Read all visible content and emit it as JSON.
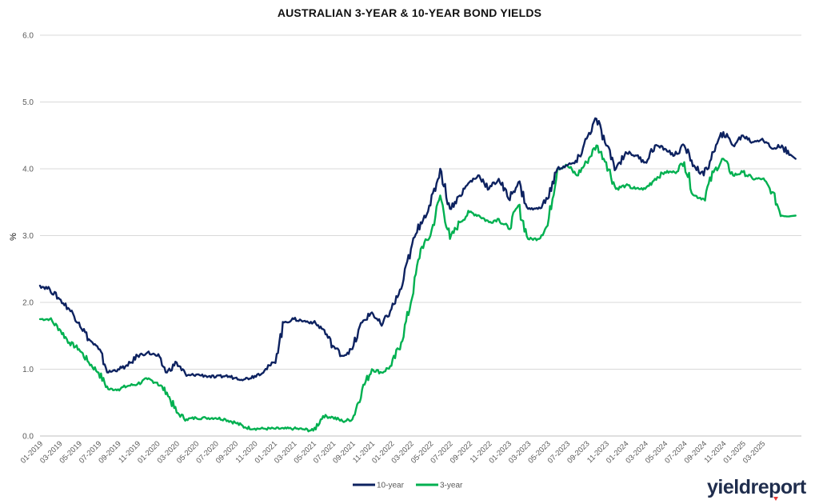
{
  "chart_data": {
    "type": "line",
    "title": "AUSTRALIAN 3-YEAR & 10-YEAR BOND YIELDS",
    "ylabel": "%",
    "xlabel": "",
    "ylim": [
      0,
      6
    ],
    "y_ticks": [
      "0.0",
      "1.0",
      "2.0",
      "3.0",
      "4.0",
      "5.0",
      "6.0"
    ],
    "x_range": [
      "01-2019",
      "07-2025"
    ],
    "x_ticks": [
      "01-2019",
      "03-2019",
      "05-2019",
      "07-2019",
      "09-2019",
      "11-2019",
      "01-2020",
      "03-2020",
      "05-2020",
      "07-2020",
      "09-2020",
      "11-2020",
      "01-2021",
      "03-2021",
      "05-2021",
      "07-2021",
      "09-2021",
      "11-2021",
      "01-2022",
      "03-2022",
      "05-2022",
      "07-2022",
      "09-2022",
      "11-2022",
      "01-2023",
      "03-2023",
      "05-2023",
      "07-2023",
      "09-2023",
      "11-2023",
      "01-2024",
      "03-2024",
      "05-2024",
      "07-2024",
      "09-2024",
      "11-2024",
      "01-2025",
      "03-2025"
    ],
    "grid": "horizontal",
    "legend_position": "bottom",
    "colors": {
      "10-year": "#0d2260",
      "3-year": "#00b050",
      "grid": "#d9d9d9",
      "axis": "#bfbfbf"
    },
    "series": [
      {
        "name": "10-year",
        "x": [
          "2019-01",
          "2019-02",
          "2019-03",
          "2019-04",
          "2019-05",
          "2019-06",
          "2019-07",
          "2019-08",
          "2019-09",
          "2019-10",
          "2019-11",
          "2019-12",
          "2020-01",
          "2020-02",
          "2020-03",
          "2020-04",
          "2020-05",
          "2020-06",
          "2020-07",
          "2020-08",
          "2020-09",
          "2020-10",
          "2020-11",
          "2020-12",
          "2021-01",
          "2021-02",
          "2021-03",
          "2021-04",
          "2021-05",
          "2021-06",
          "2021-07",
          "2021-08",
          "2021-09",
          "2021-10",
          "2021-11",
          "2021-12",
          "2022-01",
          "2022-02",
          "2022-03",
          "2022-04",
          "2022-05",
          "2022-06",
          "2022-07",
          "2022-08",
          "2022-09",
          "2022-10",
          "2022-11",
          "2022-12",
          "2023-01",
          "2023-02",
          "2023-03",
          "2023-04",
          "2023-05",
          "2023-06",
          "2023-07",
          "2023-08",
          "2023-09",
          "2023-10",
          "2023-11",
          "2023-12",
          "2024-01",
          "2024-02",
          "2024-03",
          "2024-04",
          "2024-05",
          "2024-06",
          "2024-07",
          "2024-08",
          "2024-09",
          "2024-10",
          "2024-11",
          "2024-12",
          "2025-01",
          "2025-02",
          "2025-03",
          "2025-04",
          "2025-05",
          "2025-06"
        ],
        "values": [
          2.25,
          2.2,
          2.05,
          1.9,
          1.7,
          1.45,
          1.3,
          0.95,
          1.0,
          1.05,
          1.2,
          1.25,
          1.2,
          0.95,
          1.1,
          0.9,
          0.92,
          0.9,
          0.88,
          0.9,
          0.87,
          0.85,
          0.9,
          0.98,
          1.1,
          1.7,
          1.75,
          1.72,
          1.7,
          1.6,
          1.35,
          1.2,
          1.3,
          1.7,
          1.85,
          1.65,
          1.9,
          2.2,
          2.8,
          3.2,
          3.45,
          4.0,
          3.4,
          3.6,
          3.8,
          3.9,
          3.7,
          3.85,
          3.55,
          3.8,
          3.4,
          3.4,
          3.55,
          4.0,
          4.05,
          4.1,
          4.45,
          4.75,
          4.35,
          4.0,
          4.25,
          4.2,
          4.1,
          4.35,
          4.3,
          4.2,
          4.35,
          4.05,
          3.9,
          4.25,
          4.55,
          4.35,
          4.5,
          4.4,
          4.45,
          4.3,
          4.35,
          4.15
        ]
      },
      {
        "name": "3-year",
        "x": [
          "2019-01",
          "2019-02",
          "2019-03",
          "2019-04",
          "2019-05",
          "2019-06",
          "2019-07",
          "2019-08",
          "2019-09",
          "2019-10",
          "2019-11",
          "2019-12",
          "2020-01",
          "2020-02",
          "2020-03",
          "2020-04",
          "2020-05",
          "2020-06",
          "2020-07",
          "2020-08",
          "2020-09",
          "2020-10",
          "2020-11",
          "2020-12",
          "2021-01",
          "2021-02",
          "2021-03",
          "2021-04",
          "2021-05",
          "2021-06",
          "2021-07",
          "2021-08",
          "2021-09",
          "2021-10",
          "2021-11",
          "2021-12",
          "2022-01",
          "2022-02",
          "2022-03",
          "2022-04",
          "2022-05",
          "2022-06",
          "2022-07",
          "2022-08",
          "2022-09",
          "2022-10",
          "2022-11",
          "2022-12",
          "2023-01",
          "2023-02",
          "2023-03",
          "2023-04",
          "2023-05",
          "2023-06",
          "2023-07",
          "2023-08",
          "2023-09",
          "2023-10",
          "2023-11",
          "2023-12",
          "2024-01",
          "2024-02",
          "2024-03",
          "2024-04",
          "2024-05",
          "2024-06",
          "2024-07",
          "2024-08",
          "2024-09",
          "2024-10",
          "2024-11",
          "2024-12",
          "2025-01",
          "2025-02",
          "2025-03",
          "2025-04",
          "2025-05",
          "2025-06"
        ],
        "values": [
          1.75,
          1.75,
          1.6,
          1.4,
          1.3,
          1.1,
          0.95,
          0.7,
          0.7,
          0.75,
          0.78,
          0.85,
          0.8,
          0.65,
          0.35,
          0.25,
          0.27,
          0.27,
          0.27,
          0.25,
          0.2,
          0.13,
          0.11,
          0.11,
          0.11,
          0.11,
          0.11,
          0.1,
          0.08,
          0.3,
          0.28,
          0.22,
          0.25,
          0.7,
          1.0,
          0.95,
          1.05,
          1.4,
          2.0,
          2.8,
          3.0,
          3.6,
          2.95,
          3.2,
          3.35,
          3.3,
          3.2,
          3.25,
          3.1,
          3.45,
          2.95,
          2.95,
          3.15,
          4.0,
          4.05,
          3.9,
          4.1,
          4.35,
          4.1,
          3.7,
          3.75,
          3.7,
          3.7,
          3.85,
          3.95,
          3.95,
          4.1,
          3.6,
          3.55,
          3.95,
          4.15,
          3.9,
          3.95,
          3.85,
          3.85,
          3.65,
          3.3,
          3.3
        ]
      }
    ]
  },
  "legend": {
    "items": [
      {
        "label": "10-year"
      },
      {
        "label": "3-year"
      }
    ]
  },
  "branding": {
    "logo_text_part1": "yield",
    "logo_text_part2": "report"
  }
}
